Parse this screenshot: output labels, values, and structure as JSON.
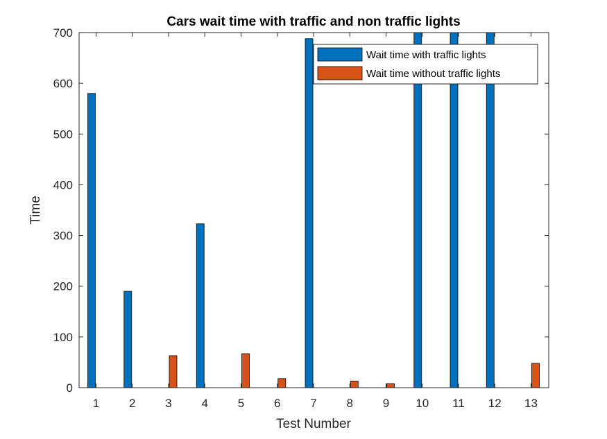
{
  "chart_data": {
    "type": "bar",
    "title": "Cars wait time with traffic and non traffic lights",
    "xlabel": "Test Number",
    "ylabel": "Time",
    "categories": [
      "1",
      "2",
      "3",
      "4",
      "5",
      "6",
      "7",
      "8",
      "9",
      "10",
      "11",
      "12",
      "13"
    ],
    "ylim": [
      0,
      700
    ],
    "yticks": [
      "0",
      "100",
      "200",
      "300",
      "400",
      "500",
      "600",
      "700"
    ],
    "grid": false,
    "legend_position": "top-right",
    "series": [
      {
        "name": "Wait time with traffic lights",
        "color": "#0072BD",
        "values": [
          580,
          190,
          0,
          323,
          0,
          0,
          688,
          0,
          0,
          700,
          700,
          700,
          0
        ]
      },
      {
        "name": "Wait time without traffic lights",
        "color": "#D95319",
        "values": [
          0,
          0,
          63,
          0,
          67,
          18,
          0,
          13,
          8,
          0,
          0,
          0,
          48
        ]
      }
    ]
  }
}
